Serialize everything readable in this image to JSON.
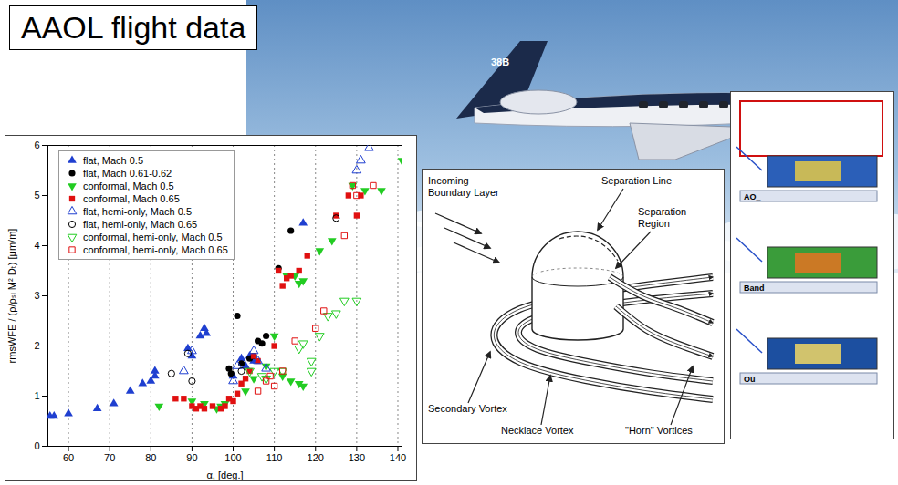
{
  "header": {
    "title": "AAOL flight data"
  },
  "photo": {
    "tail_number": "38B"
  },
  "chart_data": {
    "type": "scatter",
    "x_label": "α, [deg.]",
    "y_label": "rmsWFE / (ρ/ρₛₗ M² Dₜ) [μm/m]",
    "xlim": [
      55,
      141
    ],
    "ylim": [
      0,
      6
    ],
    "xticks": [
      60,
      70,
      80,
      90,
      100,
      110,
      120,
      130,
      140
    ],
    "yticks": [
      0,
      1,
      2,
      3,
      4,
      5,
      6
    ],
    "grid": true,
    "legend": "top-left",
    "series": [
      {
        "name": "flat, Mach 0.5",
        "color": "#1f3fd0",
        "marker": "triangle",
        "x": [
          55.5,
          56.5,
          60,
          67,
          71,
          75,
          78,
          80,
          81,
          81,
          89,
          90,
          92,
          93,
          93.5,
          100,
          102,
          103,
          104,
          105,
          117
        ],
        "values": [
          0.6,
          0.6,
          0.65,
          0.75,
          0.85,
          1.1,
          1.25,
          1.3,
          1.4,
          1.5,
          1.95,
          1.8,
          2.2,
          2.35,
          2.25,
          1.4,
          1.75,
          1.6,
          1.8,
          1.7,
          4.45
        ]
      },
      {
        "name": "flat, Mach 0.61-0.62",
        "color": "#000000",
        "marker": "circle",
        "x": [
          99,
          99.5,
          101,
          102,
          104,
          105,
          106,
          107,
          108,
          111,
          114
        ],
        "values": [
          1.55,
          1.45,
          2.6,
          1.65,
          1.75,
          1.8,
          2.1,
          2.05,
          2.2,
          3.55,
          4.3
        ]
      },
      {
        "name": "conformal, Mach 0.5",
        "color": "#22cc22",
        "marker": "triangle-down",
        "x": [
          82,
          90,
          93,
          96,
          97,
          98,
          103,
          105,
          108,
          110,
          112,
          113,
          114,
          115,
          116,
          116,
          117,
          117,
          121,
          124,
          129,
          132,
          136,
          141
        ],
        "values": [
          0.8,
          0.9,
          0.85,
          0.75,
          0.8,
          0.85,
          1.1,
          1.35,
          1.6,
          2.2,
          1.4,
          3.4,
          1.3,
          3.4,
          1.25,
          3.25,
          1.2,
          3.3,
          3.9,
          4.1,
          5.2,
          5.1,
          5.1,
          5.7
        ]
      },
      {
        "name": "conformal, Mach 0.65",
        "color": "#e01010",
        "marker": "square",
        "x": [
          86,
          88,
          90,
          91,
          92,
          93,
          95,
          97,
          98,
          99,
          100,
          101,
          102,
          103,
          104,
          105,
          106,
          110,
          111,
          112,
          113,
          114,
          116,
          118,
          125,
          128,
          130,
          131
        ],
        "values": [
          0.95,
          0.95,
          0.8,
          0.75,
          0.8,
          0.75,
          0.8,
          0.75,
          0.8,
          0.95,
          0.9,
          1.05,
          1.25,
          1.35,
          1.5,
          1.8,
          1.7,
          2.0,
          3.5,
          3.2,
          3.35,
          3.4,
          3.5,
          3.8,
          4.6,
          5.0,
          4.6,
          5.0
        ]
      },
      {
        "name": "flat, hemi-only, Mach 0.5",
        "color": "#1f3fd0",
        "marker": "triangle-open",
        "x": [
          88,
          90,
          100,
          101,
          105,
          106,
          108,
          130,
          131,
          133
        ],
        "values": [
          1.5,
          1.9,
          1.3,
          1.6,
          1.9,
          1.7,
          1.55,
          5.5,
          5.7,
          5.95
        ]
      },
      {
        "name": "flat, hemi-only, Mach 0.65",
        "color": "#000000",
        "marker": "circle-open",
        "x": [
          85,
          89,
          90,
          102,
          125
        ],
        "values": [
          1.45,
          1.85,
          1.3,
          1.5,
          4.55
        ]
      },
      {
        "name": "conformal, hemi-only, Mach 0.5",
        "color": "#22cc22",
        "marker": "triangle-down-open",
        "x": [
          104,
          107,
          108,
          110,
          112,
          116,
          117,
          119,
          119,
          121,
          123,
          125,
          127,
          130
        ],
        "values": [
          1.5,
          1.4,
          1.35,
          1.5,
          1.5,
          1.95,
          2.05,
          1.5,
          1.7,
          2.2,
          2.6,
          2.65,
          2.9,
          2.9
        ]
      },
      {
        "name": "conformal, hemi-only, Mach 0.65",
        "color": "#e01010",
        "marker": "square-open",
        "x": [
          106,
          108,
          109,
          110,
          112,
          115,
          120,
          122,
          127,
          129,
          130,
          134
        ],
        "values": [
          1.1,
          1.3,
          1.4,
          1.2,
          1.5,
          2.1,
          2.35,
          2.7,
          4.2,
          5.2,
          5.0,
          5.2
        ]
      }
    ]
  },
  "diagram": {
    "labels": [
      "Incoming Boundary Layer",
      "Separation Line",
      "Separation Region",
      "Secondary Vortex",
      "Necklace Vortex",
      "\"Horn\" Vortices"
    ]
  },
  "side_panel": {
    "labels": [
      "AO_",
      "Band",
      "Ou"
    ]
  }
}
